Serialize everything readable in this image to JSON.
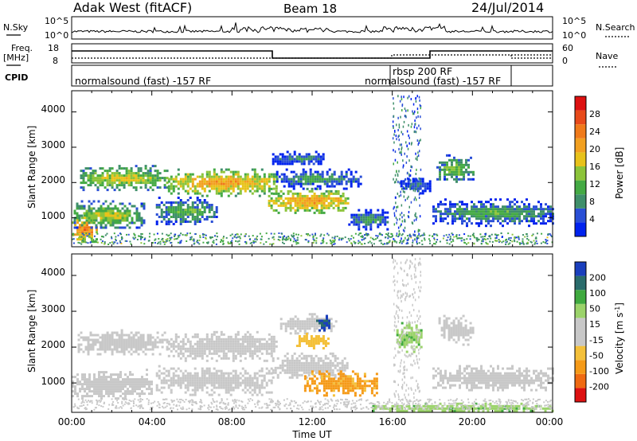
{
  "header": {
    "station": "Adak West (fitACF)",
    "beam": "Beam 18",
    "date": "24/Jul/2014"
  },
  "panels": {
    "nsky_label": "N.Sky",
    "nsky_ticks": [
      "10^5",
      "10^0"
    ],
    "nsearch_label": "N.Search",
    "nsearch_ticks": [
      "10^5",
      "10^0"
    ],
    "freq_label": "Freq.",
    "freq_unit": "[MHz]",
    "freq_ticks": [
      "18",
      "8"
    ],
    "nave_label": "Nave",
    "nave_ticks": [
      "60",
      "0"
    ],
    "cpid_label": "CPID",
    "cpid_segments": [
      "normalsound (fast) -157 RF",
      "rbsp 200 RF",
      "normalsound (fast) -157 RF"
    ]
  },
  "power_panel": {
    "ylabel": "Slant Range [km]",
    "yticks": [
      "1000",
      "2000",
      "3000",
      "4000"
    ],
    "colorbar_label": "Power [dB]",
    "colorbar_ticks": [
      "4",
      "8",
      "12",
      "16",
      "20",
      "24",
      "28"
    ],
    "colorbar_colors": [
      "#0022ee",
      "#2a4fd6",
      "#3f8f6a",
      "#44aa44",
      "#8cc43a",
      "#e8c21a",
      "#f2a020",
      "#f07a1a",
      "#e84a1a",
      "#dd1111"
    ]
  },
  "velocity_panel": {
    "ylabel": "Slant Range [km]",
    "yticks": [
      "1000",
      "2000",
      "3000",
      "4000"
    ],
    "colorbar_label": "Velocity [m s",
    "colorbar_sup": "-1",
    "colorbar_close": "]",
    "colorbar_ticks": [
      "-200",
      "-100",
      "-50",
      "-15",
      "15",
      "50",
      "100",
      "200"
    ],
    "colorbar_colors": [
      "#dd1111",
      "#ef6a12",
      "#f59a18",
      "#f4c03a",
      "#c8c8c8",
      "#c8c8c8",
      "#9bd36a",
      "#3faa3f",
      "#2a6c6c",
      "#1a3fbd"
    ]
  },
  "xaxis": {
    "label": "Time UT",
    "ticks": [
      "00:00",
      "04:00",
      "08:00",
      "12:00",
      "16:00",
      "20:00",
      "00:00"
    ]
  },
  "chart_data": [
    {
      "type": "heatmap",
      "panel": "power",
      "xlabel": "Time UT",
      "ylabel": "Slant Range [km]",
      "xlim_hours": [
        0,
        24
      ],
      "ylim_km": [
        180,
        4600
      ],
      "colorbar": "Power [dB]",
      "colorbar_range": [
        0,
        30
      ],
      "regions": [
        {
          "t0": 0.0,
          "t1": 1.2,
          "r0": 300,
          "r1": 1100,
          "level": 24
        },
        {
          "t0": 0.1,
          "t1": 3.6,
          "r0": 700,
          "r1": 1500,
          "level": 16
        },
        {
          "t0": 0.3,
          "t1": 4.8,
          "r0": 1800,
          "r1": 2500,
          "level": 17
        },
        {
          "t0": 4.8,
          "t1": 10.2,
          "r0": 1650,
          "r1": 2400,
          "level": 21
        },
        {
          "t0": 4.2,
          "t1": 7.2,
          "r0": 800,
          "r1": 1600,
          "level": 13
        },
        {
          "t0": 9.8,
          "t1": 13.8,
          "r0": 1150,
          "r1": 1850,
          "level": 21
        },
        {
          "t0": 10.0,
          "t1": 12.6,
          "r0": 2500,
          "r1": 2900,
          "level": 9
        },
        {
          "t0": 10.2,
          "t1": 14.4,
          "r0": 1850,
          "r1": 2400,
          "level": 11
        },
        {
          "t0": 13.8,
          "t1": 15.8,
          "r0": 700,
          "r1": 1250,
          "level": 11
        },
        {
          "t0": 16.4,
          "t1": 17.9,
          "r0": 1700,
          "r1": 2200,
          "level": 8
        },
        {
          "t0": 18.2,
          "t1": 20.0,
          "r0": 2000,
          "r1": 2800,
          "level": 14
        },
        {
          "t0": 18.0,
          "t1": 24.0,
          "r0": 800,
          "r1": 1550,
          "level": 12
        }
      ]
    },
    {
      "type": "heatmap",
      "panel": "velocity",
      "xlabel": "Time UT",
      "ylabel": "Slant Range [km]",
      "xlim_hours": [
        0,
        24
      ],
      "ylim_km": [
        180,
        4600
      ],
      "colorbar": "Velocity [m s-1]",
      "colorbar_range": [
        -200,
        200
      ],
      "regions": [
        {
          "t0": 0.0,
          "t1": 4.0,
          "r0": 600,
          "r1": 1400,
          "velocity": 0
        },
        {
          "t0": 0.3,
          "t1": 4.8,
          "r0": 1800,
          "r1": 2500,
          "velocity": 0
        },
        {
          "t0": 4.8,
          "t1": 10.2,
          "r0": 1650,
          "r1": 2450,
          "velocity": 0
        },
        {
          "t0": 4.2,
          "t1": 10.0,
          "r0": 700,
          "r1": 1500,
          "velocity": 0
        },
        {
          "t0": 10.0,
          "t1": 13.8,
          "r0": 1150,
          "r1": 1850,
          "velocity": 0
        },
        {
          "t0": 10.4,
          "t1": 13.2,
          "r0": 2400,
          "r1": 2950,
          "velocity": 0
        },
        {
          "t0": 11.2,
          "t1": 12.8,
          "r0": 2000,
          "r1": 2400,
          "velocity": -30
        },
        {
          "t0": 12.2,
          "t1": 12.9,
          "r0": 2500,
          "r1": 2900,
          "velocity": 200
        },
        {
          "t0": 11.6,
          "t1": 15.2,
          "r0": 650,
          "r1": 1350,
          "velocity": -60
        },
        {
          "t0": 16.2,
          "t1": 17.4,
          "r0": 1900,
          "r1": 2700,
          "velocity": 40
        },
        {
          "t0": 18.3,
          "t1": 20.0,
          "r0": 2100,
          "r1": 2900,
          "velocity": 0
        },
        {
          "t0": 18.0,
          "t1": 24.0,
          "r0": 800,
          "r1": 1500,
          "velocity": 0
        },
        {
          "t0": 15.0,
          "t1": 24.0,
          "r0": 200,
          "r1": 450,
          "velocity": 40
        }
      ]
    }
  ]
}
